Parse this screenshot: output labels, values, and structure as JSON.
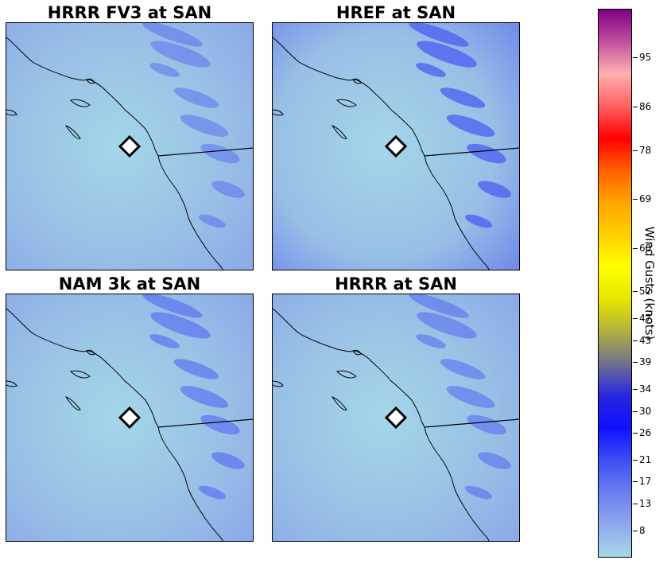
{
  "panels": [
    {
      "title": "HRRR FV3 at SAN",
      "intensity": 0.35
    },
    {
      "title": "HREF at SAN",
      "intensity": 0.9
    },
    {
      "title": "NAM 3k at SAN",
      "intensity": 0.55
    },
    {
      "title": "HRRR at SAN",
      "intensity": 0.45
    }
  ],
  "marker": {
    "label": "SAN",
    "shape": "diamond"
  },
  "colorbar": {
    "title": "Wind Gusts (knots)",
    "min": 3,
    "max": 104,
    "ticks": [
      "8",
      "13",
      "17",
      "21",
      "26",
      "30",
      "34",
      "39",
      "43",
      "47",
      "52",
      "60",
      "69",
      "78",
      "86",
      "95"
    ],
    "colors": [
      "#a6d8e6",
      "#8fa8ee",
      "#6b7ef0",
      "#3d4ef5",
      "#1010ff",
      "#2626e0",
      "#707090",
      "#b0b040",
      "#e6e600",
      "#ffff00",
      "#ffd000",
      "#ffa500",
      "#ff6000",
      "#ff0000",
      "#ff6060",
      "#ffb0b0",
      "#c050a0",
      "#800080"
    ]
  }
}
